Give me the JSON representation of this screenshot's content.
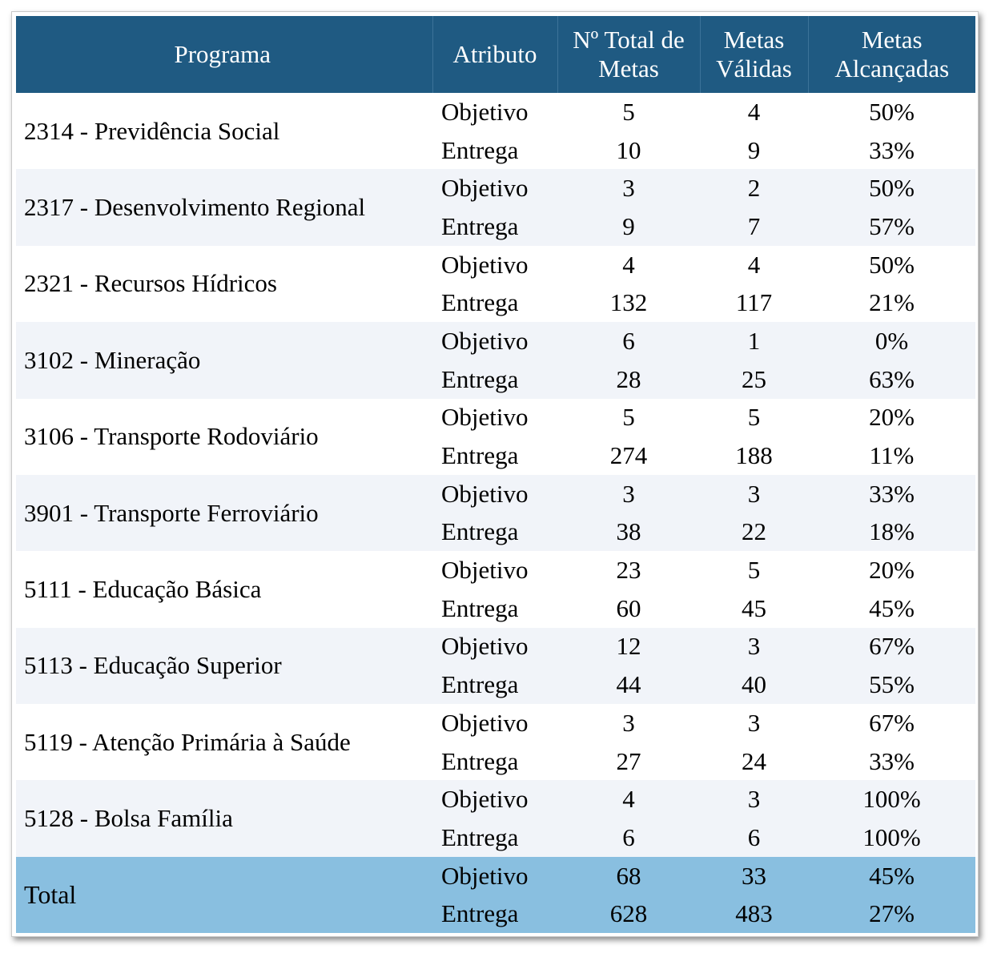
{
  "table": {
    "headers": {
      "programa": "Programa",
      "atributo": "Atributo",
      "total_line1": "Nº Total de",
      "total_line2": "Metas",
      "validas_line1": "Metas",
      "validas_line2": "Válidas",
      "alcancadas_line1": "Metas",
      "alcancadas_line2": "Alcançadas"
    },
    "programs": [
      {
        "name": "2314 - Previdência Social",
        "rows": [
          {
            "attr": "Objetivo",
            "total": "5",
            "validas": "4",
            "alcancadas": "50%"
          },
          {
            "attr": "Entrega",
            "total": "10",
            "validas": "9",
            "alcancadas": "33%"
          }
        ]
      },
      {
        "name": "2317 - Desenvolvimento Regional",
        "rows": [
          {
            "attr": "Objetivo",
            "total": "3",
            "validas": "2",
            "alcancadas": "50%"
          },
          {
            "attr": "Entrega",
            "total": "9",
            "validas": "7",
            "alcancadas": "57%"
          }
        ]
      },
      {
        "name": "2321 - Recursos Hídricos",
        "rows": [
          {
            "attr": "Objetivo",
            "total": "4",
            "validas": "4",
            "alcancadas": "50%"
          },
          {
            "attr": "Entrega",
            "total": "132",
            "validas": "117",
            "alcancadas": "21%"
          }
        ]
      },
      {
        "name": "3102 - Mineração",
        "rows": [
          {
            "attr": "Objetivo",
            "total": "6",
            "validas": "1",
            "alcancadas": "0%"
          },
          {
            "attr": "Entrega",
            "total": "28",
            "validas": "25",
            "alcancadas": "63%"
          }
        ]
      },
      {
        "name": "3106 - Transporte Rodoviário",
        "rows": [
          {
            "attr": "Objetivo",
            "total": "5",
            "validas": "5",
            "alcancadas": "20%"
          },
          {
            "attr": "Entrega",
            "total": "274",
            "validas": "188",
            "alcancadas": "11%"
          }
        ]
      },
      {
        "name": "3901 - Transporte Ferroviário",
        "rows": [
          {
            "attr": "Objetivo",
            "total": "3",
            "validas": "3",
            "alcancadas": "33%"
          },
          {
            "attr": "Entrega",
            "total": "38",
            "validas": "22",
            "alcancadas": "18%"
          }
        ]
      },
      {
        "name": "5111 - Educação Básica",
        "rows": [
          {
            "attr": "Objetivo",
            "total": "23",
            "validas": "5",
            "alcancadas": "20%"
          },
          {
            "attr": "Entrega",
            "total": "60",
            "validas": "45",
            "alcancadas": "45%"
          }
        ]
      },
      {
        "name": "5113 - Educação Superior",
        "rows": [
          {
            "attr": "Objetivo",
            "total": "12",
            "validas": "3",
            "alcancadas": "67%"
          },
          {
            "attr": "Entrega",
            "total": "44",
            "validas": "40",
            "alcancadas": "55%"
          }
        ]
      },
      {
        "name": "5119 - Atenção Primária à Saúde",
        "rows": [
          {
            "attr": "Objetivo",
            "total": "3",
            "validas": "3",
            "alcancadas": "67%"
          },
          {
            "attr": "Entrega",
            "total": "27",
            "validas": "24",
            "alcancadas": "33%"
          }
        ]
      },
      {
        "name": "5128 - Bolsa Família",
        "rows": [
          {
            "attr": "Objetivo",
            "total": "4",
            "validas": "3",
            "alcancadas": "100%"
          },
          {
            "attr": "Entrega",
            "total": "6",
            "validas": "6",
            "alcancadas": "100%"
          }
        ]
      }
    ],
    "total": {
      "name": "Total",
      "rows": [
        {
          "attr": "Objetivo",
          "total": "68",
          "validas": "33",
          "alcancadas": "45%"
        },
        {
          "attr": "Entrega",
          "total": "628",
          "validas": "483",
          "alcancadas": "27%"
        }
      ]
    },
    "colors": {
      "header_bg": "#1f5a82",
      "band_alt_bg": "#f1f4f9",
      "total_bg": "#89bfe0"
    }
  }
}
